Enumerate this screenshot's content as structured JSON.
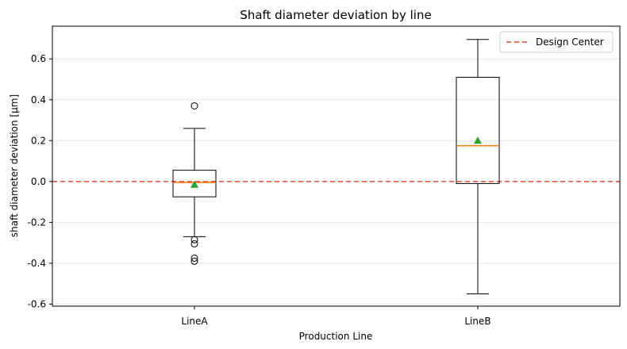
{
  "chart_data": {
    "type": "box",
    "title": "Shaft diameter deviation by line",
    "xlabel": "Production Line",
    "ylabel": "shaft diameter deviation [μm]",
    "ylim": [
      -0.61,
      0.76
    ],
    "yticks": [
      -0.6,
      -0.4,
      -0.2,
      0.0,
      0.2,
      0.4,
      0.6
    ],
    "ytick_labels": [
      "-0.6",
      "-0.4",
      "-0.2",
      "0.0",
      "0.2",
      "0.4",
      "0.6"
    ],
    "grid": "horizontal",
    "legend": {
      "placement": "top-right",
      "entries": [
        {
          "label": "Design Center",
          "style": "dashed",
          "color": "#e8433a"
        }
      ]
    },
    "reference_line": {
      "label": "Design Center",
      "y": 0.0,
      "color": "#e8433a",
      "style": "dashed"
    },
    "categories": [
      "LineA",
      "LineB"
    ],
    "boxes": [
      {
        "category": "LineA",
        "whisker_low": -0.27,
        "q1": -0.075,
        "median": -0.005,
        "q3": 0.055,
        "whisker_high": 0.26,
        "mean": -0.015,
        "outliers": [
          0.37,
          -0.285,
          -0.305,
          -0.375,
          -0.39
        ]
      },
      {
        "category": "LineB",
        "whisker_low": -0.55,
        "q1": -0.01,
        "median": 0.175,
        "q3": 0.51,
        "whisker_high": 0.695,
        "mean": 0.2,
        "outliers": []
      }
    ],
    "colors": {
      "box": "#000000",
      "median": "#ff7f0e",
      "mean": "#2ca02c",
      "reference": "#e8433a",
      "grid": "#e6e6e6"
    }
  }
}
